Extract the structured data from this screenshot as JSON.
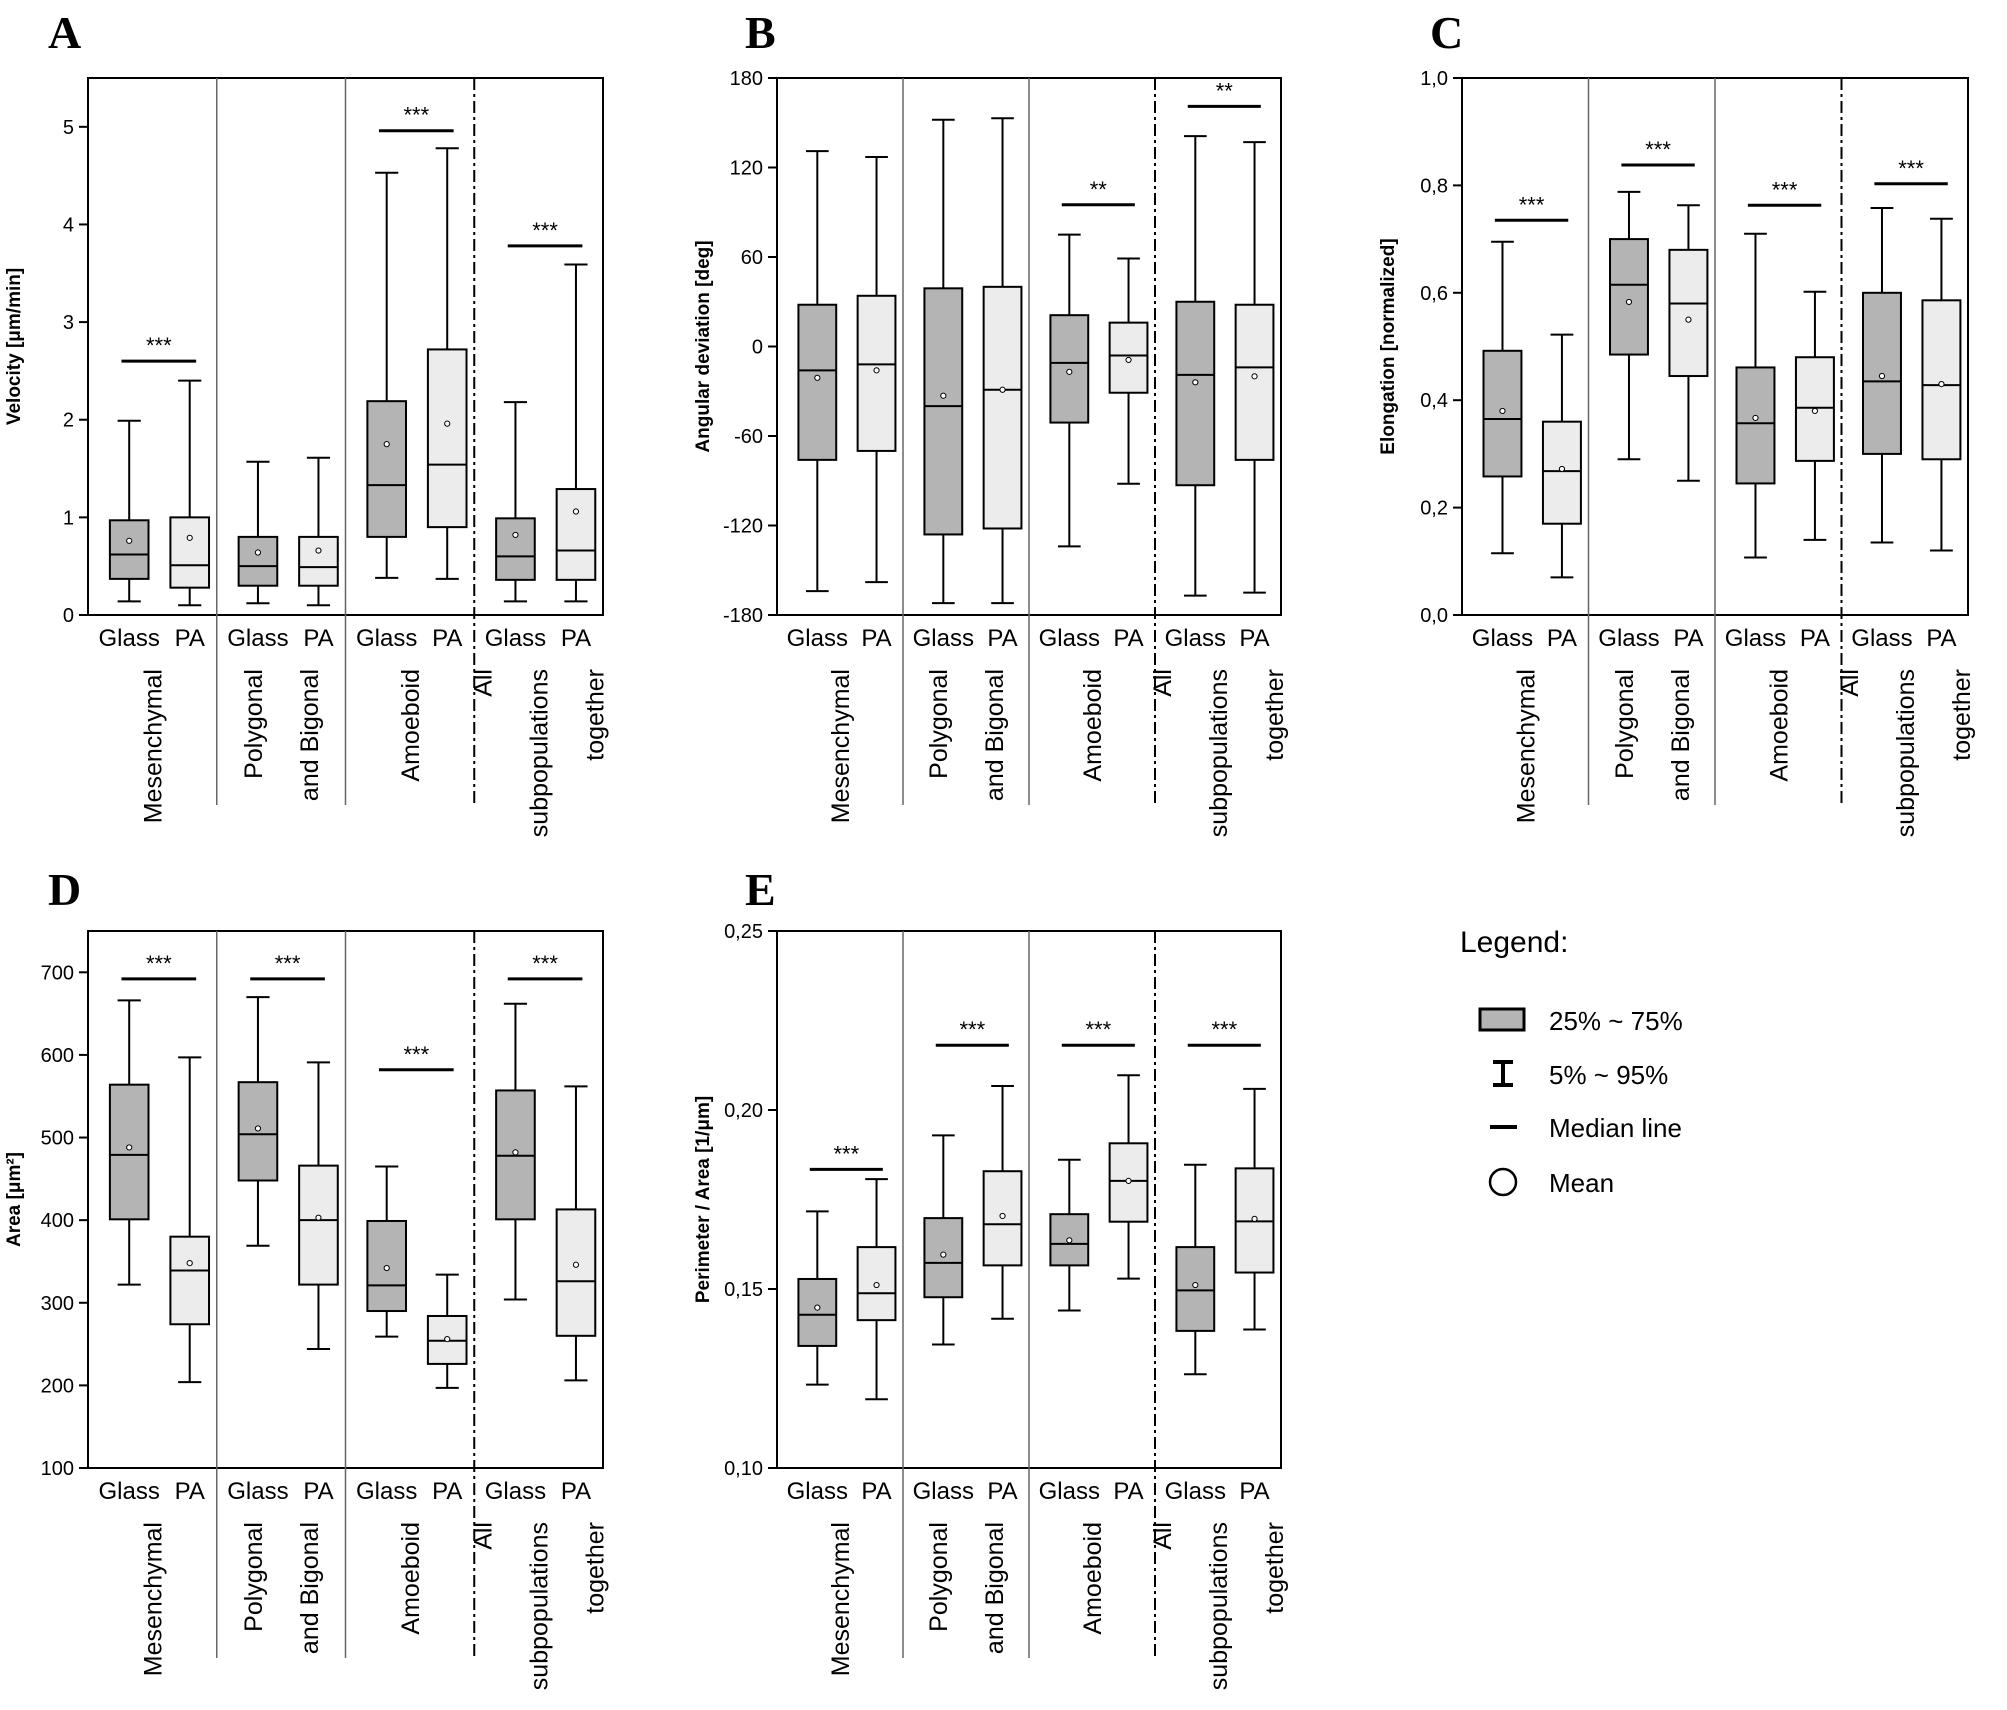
{
  "colors": {
    "glass_fill": "#b4b4b4",
    "pa_fill": "#ececec",
    "line": "#000000"
  },
  "legend": {
    "title": "Legend:",
    "items": [
      {
        "icon": "box-icon",
        "label": "25% ~ 75%"
      },
      {
        "icon": "whisker-icon",
        "label": "5% ~ 95%"
      },
      {
        "icon": "median-line-icon",
        "label": "Median line"
      },
      {
        "icon": "mean-circle-icon",
        "label": "Mean"
      }
    ]
  },
  "chart_data": [
    {
      "panel": "A",
      "type": "box",
      "ylabel": "Velocity [μm/min]",
      "ylim": [
        0,
        5.5
      ],
      "yticks": [
        "0",
        "1",
        "2",
        "3",
        "4",
        "5"
      ],
      "ytick_values": [
        0,
        1,
        2,
        3,
        4,
        5
      ],
      "groups": [
        {
          "label": [
            "Mesenchymal"
          ],
          "significance": "***",
          "sig_y": 2.6,
          "separator": "solid",
          "boxes": [
            {
              "category": "Glass",
              "p5": 0.14,
              "q1": 0.37,
              "median": 0.62,
              "q3": 0.97,
              "p95": 1.99,
              "mean": 0.76
            },
            {
              "category": "PA",
              "p5": 0.1,
              "q1": 0.28,
              "median": 0.51,
              "q3": 1.0,
              "p95": 2.4,
              "mean": 0.79
            }
          ]
        },
        {
          "label": [
            "Polygonal",
            "and Bigonal"
          ],
          "significance": "",
          "sig_y": null,
          "separator": "solid",
          "boxes": [
            {
              "category": "Glass",
              "p5": 0.12,
              "q1": 0.3,
              "median": 0.5,
              "q3": 0.8,
              "p95": 1.57,
              "mean": 0.64
            },
            {
              "category": "PA",
              "p5": 0.1,
              "q1": 0.3,
              "median": 0.49,
              "q3": 0.8,
              "p95": 1.61,
              "mean": 0.66
            }
          ]
        },
        {
          "label": [
            "Amoeboid"
          ],
          "significance": "***",
          "sig_y": 4.96,
          "separator": "dashed",
          "boxes": [
            {
              "category": "Glass",
              "p5": 0.38,
              "q1": 0.8,
              "median": 1.33,
              "q3": 2.19,
              "p95": 4.53,
              "mean": 1.75
            },
            {
              "category": "PA",
              "p5": 0.37,
              "q1": 0.9,
              "median": 1.54,
              "q3": 2.72,
              "p95": 4.78,
              "mean": 1.96
            }
          ]
        },
        {
          "label": [
            "All",
            "subpopulations",
            "together"
          ],
          "significance": "***",
          "sig_y": 3.78,
          "separator": null,
          "boxes": [
            {
              "category": "Glass",
              "p5": 0.14,
              "q1": 0.36,
              "median": 0.6,
              "q3": 0.99,
              "p95": 2.18,
              "mean": 0.82
            },
            {
              "category": "PA",
              "p5": 0.14,
              "q1": 0.36,
              "median": 0.66,
              "q3": 1.29,
              "p95": 3.59,
              "mean": 1.06
            }
          ]
        }
      ]
    },
    {
      "panel": "B",
      "type": "box",
      "ylabel": "Angular deviation [deg]",
      "ylim": [
        -180,
        180
      ],
      "yticks": [
        "-180",
        "-120",
        "-60",
        "0",
        "60",
        "120",
        "180"
      ],
      "ytick_values": [
        -180,
        -120,
        -60,
        0,
        60,
        120,
        180
      ],
      "groups": [
        {
          "label": [
            "Mesenchymal"
          ],
          "significance": "",
          "sig_y": null,
          "separator": "solid",
          "boxes": [
            {
              "category": "Glass",
              "p5": -164,
              "q1": -76,
              "median": -16,
              "q3": 28,
              "p95": 131,
              "mean": -21
            },
            {
              "category": "PA",
              "p5": -158,
              "q1": -70,
              "median": -12,
              "q3": 34,
              "p95": 127,
              "mean": -16
            }
          ]
        },
        {
          "label": [
            "Polygonal",
            "and Bigonal"
          ],
          "significance": "",
          "sig_y": null,
          "separator": "solid",
          "boxes": [
            {
              "category": "Glass",
              "p5": -172,
              "q1": -126,
              "median": -40,
              "q3": 39,
              "p95": 152,
              "mean": -33
            },
            {
              "category": "PA",
              "p5": -172,
              "q1": -122,
              "median": -29,
              "q3": 40,
              "p95": 153,
              "mean": -29
            }
          ]
        },
        {
          "label": [
            "Amoeboid"
          ],
          "significance": "**",
          "sig_y": 95,
          "separator": "dashed",
          "boxes": [
            {
              "category": "Glass",
              "p5": -134,
              "q1": -51,
              "median": -11,
              "q3": 21,
              "p95": 75,
              "mean": -17
            },
            {
              "category": "PA",
              "p5": -92,
              "q1": -31,
              "median": -6,
              "q3": 16,
              "p95": 59,
              "mean": -9
            }
          ]
        },
        {
          "label": [
            "All",
            "subpopulations",
            "together"
          ],
          "significance": "**",
          "sig_y": 161,
          "separator": null,
          "boxes": [
            {
              "category": "Glass",
              "p5": -167,
              "q1": -93,
              "median": -19,
              "q3": 30,
              "p95": 141,
              "mean": -24
            },
            {
              "category": "PA",
              "p5": -165,
              "q1": -76,
              "median": -14,
              "q3": 28,
              "p95": 137,
              "mean": -20
            }
          ]
        }
      ]
    },
    {
      "panel": "C",
      "type": "box",
      "ylabel": "Elongation [normalized]",
      "ylim": [
        0,
        1
      ],
      "yticks": [
        "0,0",
        "0,2",
        "0,4",
        "0,6",
        "0,8",
        "1,0"
      ],
      "ytick_values": [
        0,
        0.2,
        0.4,
        0.6,
        0.8,
        1.0
      ],
      "groups": [
        {
          "label": [
            "Mesenchymal"
          ],
          "significance": "***",
          "sig_y": 0.735,
          "separator": "solid",
          "boxes": [
            {
              "category": "Glass",
              "p5": 0.115,
              "q1": 0.258,
              "median": 0.365,
              "q3": 0.492,
              "p95": 0.695,
              "mean": 0.38
            },
            {
              "category": "PA",
              "p5": 0.07,
              "q1": 0.17,
              "median": 0.268,
              "q3": 0.36,
              "p95": 0.522,
              "mean": 0.272
            }
          ]
        },
        {
          "label": [
            "Polygonal",
            "and Bigonal"
          ],
          "significance": "***",
          "sig_y": 0.838,
          "separator": "solid",
          "boxes": [
            {
              "category": "Glass",
              "p5": 0.29,
              "q1": 0.485,
              "median": 0.615,
              "q3": 0.7,
              "p95": 0.788,
              "mean": 0.583
            },
            {
              "category": "PA",
              "p5": 0.25,
              "q1": 0.445,
              "median": 0.58,
              "q3": 0.68,
              "p95": 0.763,
              "mean": 0.55
            }
          ]
        },
        {
          "label": [
            "Amoeboid"
          ],
          "significance": "***",
          "sig_y": 0.763,
          "separator": "dashed",
          "boxes": [
            {
              "category": "Glass",
              "p5": 0.107,
              "q1": 0.245,
              "median": 0.357,
              "q3": 0.461,
              "p95": 0.71,
              "mean": 0.367
            },
            {
              "category": "PA",
              "p5": 0.14,
              "q1": 0.287,
              "median": 0.386,
              "q3": 0.48,
              "p95": 0.602,
              "mean": 0.38
            }
          ]
        },
        {
          "label": [
            "All",
            "subpopulations",
            "together"
          ],
          "significance": "***",
          "sig_y": 0.803,
          "separator": null,
          "boxes": [
            {
              "category": "Glass",
              "p5": 0.135,
              "q1": 0.3,
              "median": 0.435,
              "q3": 0.6,
              "p95": 0.758,
              "mean": 0.445
            },
            {
              "category": "PA",
              "p5": 0.12,
              "q1": 0.29,
              "median": 0.428,
              "q3": 0.586,
              "p95": 0.738,
              "mean": 0.43
            }
          ]
        }
      ]
    },
    {
      "panel": "D",
      "type": "box",
      "ylabel": "Area [μm²]",
      "ylim": [
        100,
        750
      ],
      "yticks": [
        "100",
        "200",
        "300",
        "400",
        "500",
        "600",
        "700"
      ],
      "ytick_values": [
        100,
        200,
        300,
        400,
        500,
        600,
        700
      ],
      "groups": [
        {
          "label": [
            "Mesenchymal"
          ],
          "significance": "***",
          "sig_y": 692,
          "separator": "solid",
          "boxes": [
            {
              "category": "Glass",
              "p5": 322,
              "q1": 401,
              "median": 479,
              "q3": 564,
              "p95": 666,
              "mean": 488
            },
            {
              "category": "PA",
              "p5": 204,
              "q1": 274,
              "median": 339,
              "q3": 380,
              "p95": 597,
              "mean": 348
            }
          ]
        },
        {
          "label": [
            "Polygonal",
            "and Bigonal"
          ],
          "significance": "***",
          "sig_y": 692,
          "separator": "solid",
          "boxes": [
            {
              "category": "Glass",
              "p5": 369,
              "q1": 448,
              "median": 504,
              "q3": 567,
              "p95": 670,
              "mean": 511
            },
            {
              "category": "PA",
              "p5": 244,
              "q1": 322,
              "median": 400,
              "q3": 466,
              "p95": 591,
              "mean": 403
            }
          ]
        },
        {
          "label": [
            "Amoeboid"
          ],
          "significance": "***",
          "sig_y": 582,
          "separator": "dashed",
          "boxes": [
            {
              "category": "Glass",
              "p5": 259,
              "q1": 290,
              "median": 321,
              "q3": 399,
              "p95": 465,
              "mean": 342
            },
            {
              "category": "PA",
              "p5": 197,
              "q1": 226,
              "median": 254,
              "q3": 284,
              "p95": 334,
              "mean": 256
            }
          ]
        },
        {
          "label": [
            "All",
            "subpopulations",
            "together"
          ],
          "significance": "***",
          "sig_y": 692,
          "separator": null,
          "boxes": [
            {
              "category": "Glass",
              "p5": 304,
              "q1": 401,
              "median": 478,
              "q3": 557,
              "p95": 662,
              "mean": 482
            },
            {
              "category": "PA",
              "p5": 206,
              "q1": 260,
              "median": 326,
              "q3": 413,
              "p95": 562,
              "mean": 346
            }
          ]
        }
      ]
    },
    {
      "panel": "E",
      "type": "box",
      "ylabel": "Perimeter / Area [1/μm]",
      "ylim": [
        0.1,
        0.25
      ],
      "yticks": [
        "0,10",
        "0,15",
        "0,20",
        "0,25"
      ],
      "ytick_values": [
        0.1,
        0.15,
        0.2,
        0.25
      ],
      "groups": [
        {
          "label": [
            "Mesenchymal"
          ],
          "significance": "***",
          "sig_y": 0.1834,
          "separator": "solid",
          "boxes": [
            {
              "category": "Glass",
              "p5": 0.1233,
              "q1": 0.1341,
              "median": 0.1428,
              "q3": 0.1528,
              "p95": 0.1717,
              "mean": 0.1448
            },
            {
              "category": "PA",
              "p5": 0.1192,
              "q1": 0.1413,
              "median": 0.1488,
              "q3": 0.1617,
              "p95": 0.1807,
              "mean": 0.1511
            }
          ]
        },
        {
          "label": [
            "Polygonal",
            "and Bigonal"
          ],
          "significance": "***",
          "sig_y": 0.2181,
          "separator": "solid",
          "boxes": [
            {
              "category": "Glass",
              "p5": 0.1345,
              "q1": 0.1477,
              "median": 0.1573,
              "q3": 0.1698,
              "p95": 0.1929,
              "mean": 0.1596
            },
            {
              "category": "PA",
              "p5": 0.1417,
              "q1": 0.1566,
              "median": 0.1681,
              "q3": 0.1829,
              "p95": 0.2067,
              "mean": 0.1704
            }
          ]
        },
        {
          "label": [
            "Amoeboid"
          ],
          "significance": "***",
          "sig_y": 0.2181,
          "separator": "dashed",
          "boxes": [
            {
              "category": "Glass",
              "p5": 0.144,
              "q1": 0.1566,
              "median": 0.1626,
              "q3": 0.1709,
              "p95": 0.1861,
              "mean": 0.1636
            },
            {
              "category": "PA",
              "p5": 0.1529,
              "q1": 0.1688,
              "median": 0.1802,
              "q3": 0.1907,
              "p95": 0.2097,
              "mean": 0.1802
            }
          ]
        },
        {
          "label": [
            "All",
            "subpopulations",
            "together"
          ],
          "significance": "***",
          "sig_y": 0.2181,
          "separator": null,
          "boxes": [
            {
              "category": "Glass",
              "p5": 0.1262,
              "q1": 0.1383,
              "median": 0.1496,
              "q3": 0.1617,
              "p95": 0.1847,
              "mean": 0.1511
            },
            {
              "category": "PA",
              "p5": 0.1387,
              "q1": 0.1546,
              "median": 0.1689,
              "q3": 0.1837,
              "p95": 0.2059,
              "mean": 0.1696
            }
          ]
        }
      ]
    }
  ]
}
